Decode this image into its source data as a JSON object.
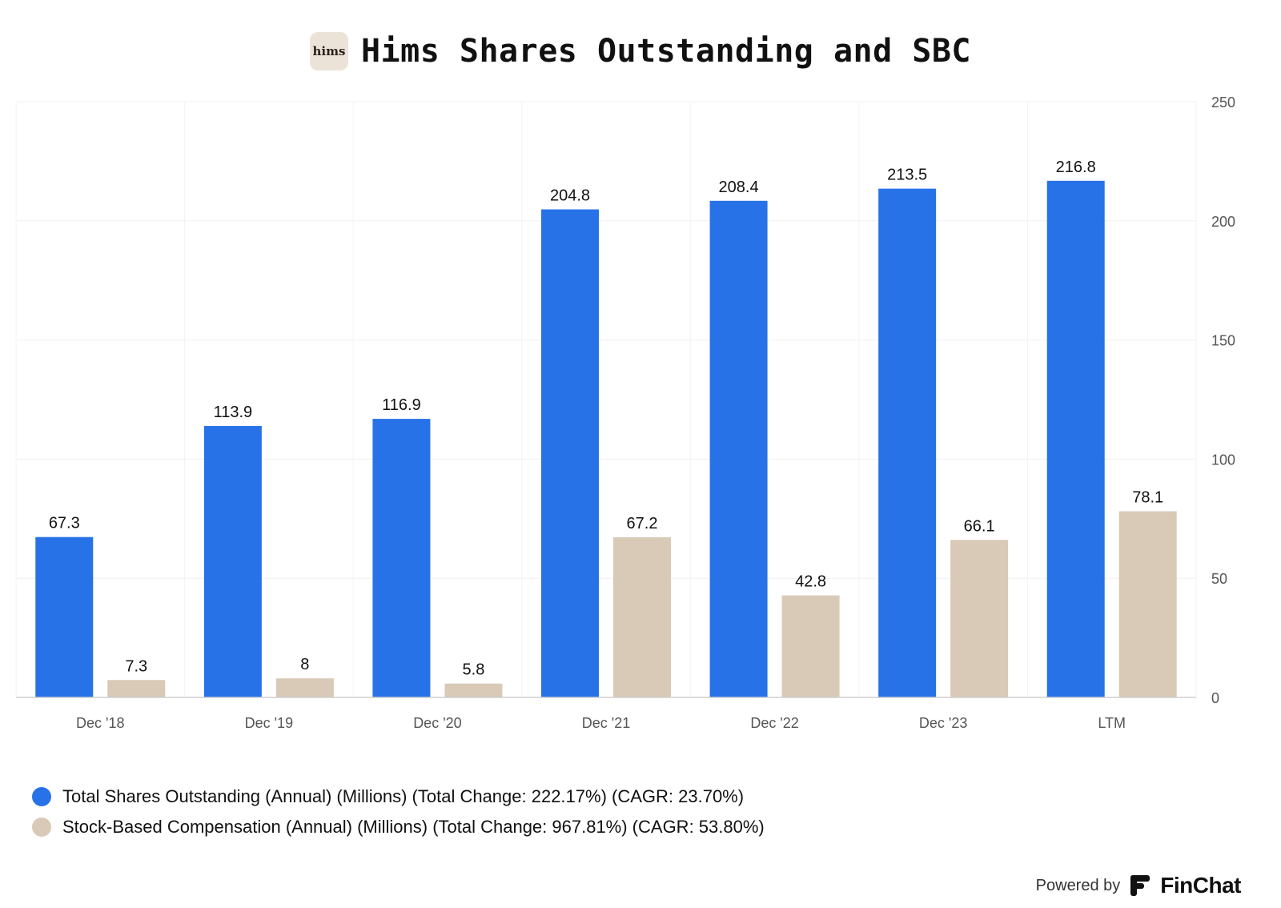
{
  "header": {
    "logo_text": "hims",
    "title": "Hims Shares Outstanding and SBC"
  },
  "chart_data": {
    "type": "bar",
    "title": "Hims Shares Outstanding and SBC",
    "categories": [
      "Dec '18",
      "Dec '19",
      "Dec '20",
      "Dec '21",
      "Dec '22",
      "Dec '23",
      "LTM"
    ],
    "series": [
      {
        "name": "Total Shares Outstanding (Annual) (Millions) (Total Change: 222.17%) (CAGR: 23.70%)",
        "color": "#2872e8",
        "values": [
          67.3,
          113.9,
          116.9,
          204.8,
          208.4,
          213.5,
          216.8
        ],
        "labels": [
          "67.3",
          "113.9",
          "116.9",
          "204.8",
          "208.4",
          "213.5",
          "216.8"
        ]
      },
      {
        "name": "Stock-Based Compensation (Annual) (Millions) (Total Change: 967.81%) (CAGR: 53.80%)",
        "color": "#d9c9b7",
        "values": [
          7.3,
          8,
          5.8,
          67.2,
          42.8,
          66.1,
          78.1
        ],
        "labels": [
          "7.3",
          "8",
          "5.8",
          "67.2",
          "42.8",
          "66.1",
          "78.1"
        ]
      }
    ],
    "y_ticks": [
      "0",
      "50",
      "100",
      "150",
      "200",
      "250"
    ],
    "ylim": [
      0,
      250
    ],
    "y_axis_side": "right",
    "grid": true,
    "legend_position": "bottom-left"
  },
  "footer": {
    "powered_by": "Powered by",
    "brand": "FinChat"
  }
}
